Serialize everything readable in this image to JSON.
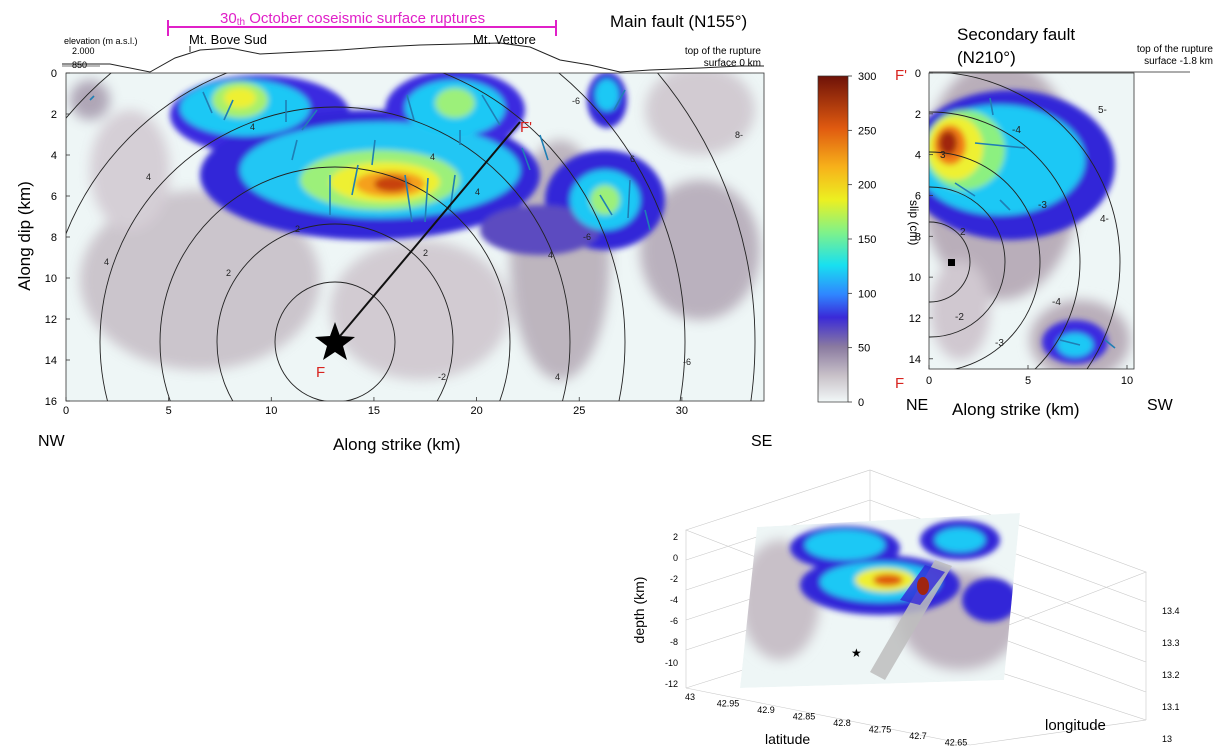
{
  "colors": {
    "bg_slip": "#eef6f6",
    "annotation_magenta": "#e020c8",
    "hypocenter_label": "#d8241f",
    "vector": "#1f7fb4",
    "contour": "#222222"
  },
  "topography": {
    "elevation_label": "elevation (m a.s.l.)",
    "elev_ticks": [
      "2.000",
      "850"
    ],
    "peak_labels": [
      "Mt. Bove Sud",
      "Mt. Vettore"
    ],
    "rupture_label": "30th October coseismic surface ruptures",
    "rupture_label_main": "30",
    "rupture_label_sub": "th",
    "rupture_label_rest": " October coseismic surface ruptures"
  },
  "main_fault": {
    "title": "Main fault (N155°)",
    "top_note_line1": "top of the rupture",
    "top_note_line2": "surface 0 km",
    "xlabel": "Along strike (km)",
    "ylabel": "Along dip (km)",
    "left_dir": "NW",
    "right_dir": "SE",
    "x_ticks": [
      "0",
      "5",
      "10",
      "15",
      "20",
      "25",
      "30"
    ],
    "y_ticks": [
      "0",
      "2",
      "4",
      "6",
      "8",
      "10",
      "12",
      "14",
      "16"
    ],
    "hypocenter_label": "F",
    "section_end_label": "F'"
  },
  "secondary_fault": {
    "title_line1": "Secondary fault",
    "title_line2": "(N210°)",
    "top_note_line1": "top of the rupture",
    "top_note_line2": "surface -1.8 km",
    "xlabel": "Along strike (km)",
    "left_dir": "NE",
    "right_dir": "SW",
    "x_ticks": [
      "0",
      "5",
      "10"
    ],
    "y_ticks": [
      "0",
      "2",
      "4",
      "6",
      "8",
      "10",
      "12",
      "14"
    ],
    "top_label": "F'",
    "bottom_label": "F"
  },
  "colorbar": {
    "label": "slip (cm)",
    "ticks": [
      "300",
      "250",
      "200",
      "150",
      "100",
      "50",
      "0"
    ]
  },
  "view3d": {
    "zlabel": "depth (km)",
    "xlabel": "latitude",
    "ylabel": "longitude",
    "z_ticks": [
      "2",
      "0",
      "-2",
      "-4",
      "-6",
      "-8",
      "-10",
      "-12"
    ],
    "lat_ticks": [
      "43",
      "42.95",
      "42.9",
      "42.85",
      "42.8",
      "42.75",
      "42.7",
      "42.65"
    ],
    "lon_ticks": [
      "13",
      "13.1",
      "13.2",
      "13.3",
      "13.4"
    ]
  },
  "chart_data": [
    {
      "type": "heatmap",
      "title": "Main fault (N155°)",
      "xlabel": "Along strike (km)",
      "ylabel": "Along dip (km)",
      "xlim": [
        0,
        34
      ],
      "ylim": [
        16,
        0
      ],
      "colorbar_label": "slip (cm)",
      "clim": [
        0,
        300
      ],
      "peak_slip_cm": 290,
      "peak_location_km": {
        "strike": 16,
        "dip": 5.5
      },
      "hypocenter_km": {
        "strike": 13,
        "dip": 13.2
      },
      "slip_patches": [
        {
          "strike": 8.5,
          "dip": 1.4,
          "slip": 190
        },
        {
          "strike": 16,
          "dip": 5.5,
          "slip": 290
        },
        {
          "strike": 20,
          "dip": 1.5,
          "slip": 150
        },
        {
          "strike": 15.5,
          "dip": 1.5,
          "slip": 130
        },
        {
          "strike": 27,
          "dip": 5.5,
          "slip": 130
        },
        {
          "strike": 27,
          "dip": 1.0,
          "slip": 100
        }
      ],
      "rupture_time_contours": [
        {
          "label": "2",
          "radius_km": 3
        },
        {
          "label": "2",
          "radius_km": 6
        },
        {
          "label": "4",
          "radius_km": 11
        },
        {
          "label": "6",
          "radius_km": 16
        },
        {
          "label": "8",
          "radius_km": 21
        }
      ]
    },
    {
      "type": "heatmap",
      "title": "Secondary fault (N210°)",
      "xlabel": "Along strike (km)",
      "ylabel": "",
      "xlim": [
        0,
        10
      ],
      "ylim": [
        14.5,
        0
      ],
      "clim": [
        0,
        300
      ],
      "peak_slip_cm": 280,
      "peak_location_km": {
        "strike": 1,
        "dip": 3.5
      },
      "rupture_time_contour_labels": [
        "2",
        "3",
        "4",
        "5",
        "-2",
        "-3",
        "-4"
      ]
    },
    {
      "type": "colorbar",
      "label": "slip (cm)",
      "range": [
        0,
        300
      ],
      "ticks": [
        0,
        50,
        100,
        150,
        200,
        250,
        300
      ]
    },
    {
      "type": "surface3d",
      "zlabel": "depth (km)",
      "xlabel": "latitude",
      "ylabel": "longitude",
      "zlim": [
        -12,
        2
      ],
      "xlim": [
        42.65,
        43
      ],
      "ylim": [
        13,
        13.4
      ]
    }
  ]
}
